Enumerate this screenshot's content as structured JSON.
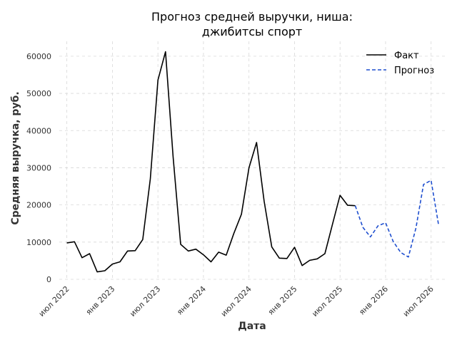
{
  "chart_data": {
    "type": "line",
    "title_lines": [
      "Прогноз средней выручки, ниша:",
      "джибитсы спорт"
    ],
    "xlabel": "Дата",
    "ylabel": "Средняя выручка, руб.",
    "ylim": [
      0,
      64000
    ],
    "xlim": [
      "2022-06",
      "2026-09"
    ],
    "yticks": [
      0,
      10000,
      20000,
      30000,
      40000,
      50000,
      60000
    ],
    "xticks": [
      {
        "date": "2022-07",
        "label": "июл 2022"
      },
      {
        "date": "2023-01",
        "label": "янв 2023"
      },
      {
        "date": "2023-07",
        "label": "июл 2023"
      },
      {
        "date": "2024-01",
        "label": "янв 2024"
      },
      {
        "date": "2024-07",
        "label": "июл 2024"
      },
      {
        "date": "2025-01",
        "label": "янв 2025"
      },
      {
        "date": "2025-07",
        "label": "июл 2025"
      },
      {
        "date": "2026-01",
        "label": "янв 2026"
      },
      {
        "date": "2026-07",
        "label": "июл 2026"
      }
    ],
    "grid": true,
    "legend_position": "top-right",
    "series": [
      {
        "name": "Факт",
        "color": "#000000",
        "style": "solid",
        "x": [
          "2022-07",
          "2022-08",
          "2022-09",
          "2022-10",
          "2022-11",
          "2022-12",
          "2023-01",
          "2023-02",
          "2023-03",
          "2023-04",
          "2023-05",
          "2023-06",
          "2023-07",
          "2023-08",
          "2023-09",
          "2023-10",
          "2023-11",
          "2023-12",
          "2024-01",
          "2024-02",
          "2024-03",
          "2024-04",
          "2024-05",
          "2024-06",
          "2024-07",
          "2024-08",
          "2024-09",
          "2024-10",
          "2024-11",
          "2024-12",
          "2025-01",
          "2025-02",
          "2025-03",
          "2025-04",
          "2025-05",
          "2025-06",
          "2025-07",
          "2025-08",
          "2025-09"
        ],
        "values": [
          9800,
          10100,
          5800,
          6900,
          2000,
          2300,
          4100,
          4700,
          7600,
          7700,
          10700,
          27000,
          53600,
          61200,
          33000,
          9400,
          7600,
          8100,
          6600,
          4700,
          7300,
          6500,
          12300,
          17500,
          30000,
          36800,
          21000,
          8700,
          5700,
          5600,
          8600,
          3700,
          5100,
          5500,
          6900,
          14800,
          22600,
          19900,
          19800
        ]
      },
      {
        "name": "Прогноз",
        "color": "#1f4fcf",
        "style": "dashed",
        "x": [
          "2025-09",
          "2025-10",
          "2025-11",
          "2025-12",
          "2026-01",
          "2026-02",
          "2026-03",
          "2026-04",
          "2026-05",
          "2026-06",
          "2026-07",
          "2026-08"
        ],
        "values": [
          19800,
          14000,
          11400,
          14400,
          15200,
          10200,
          7200,
          6000,
          13800,
          25500,
          26600,
          14400
        ]
      }
    ]
  }
}
